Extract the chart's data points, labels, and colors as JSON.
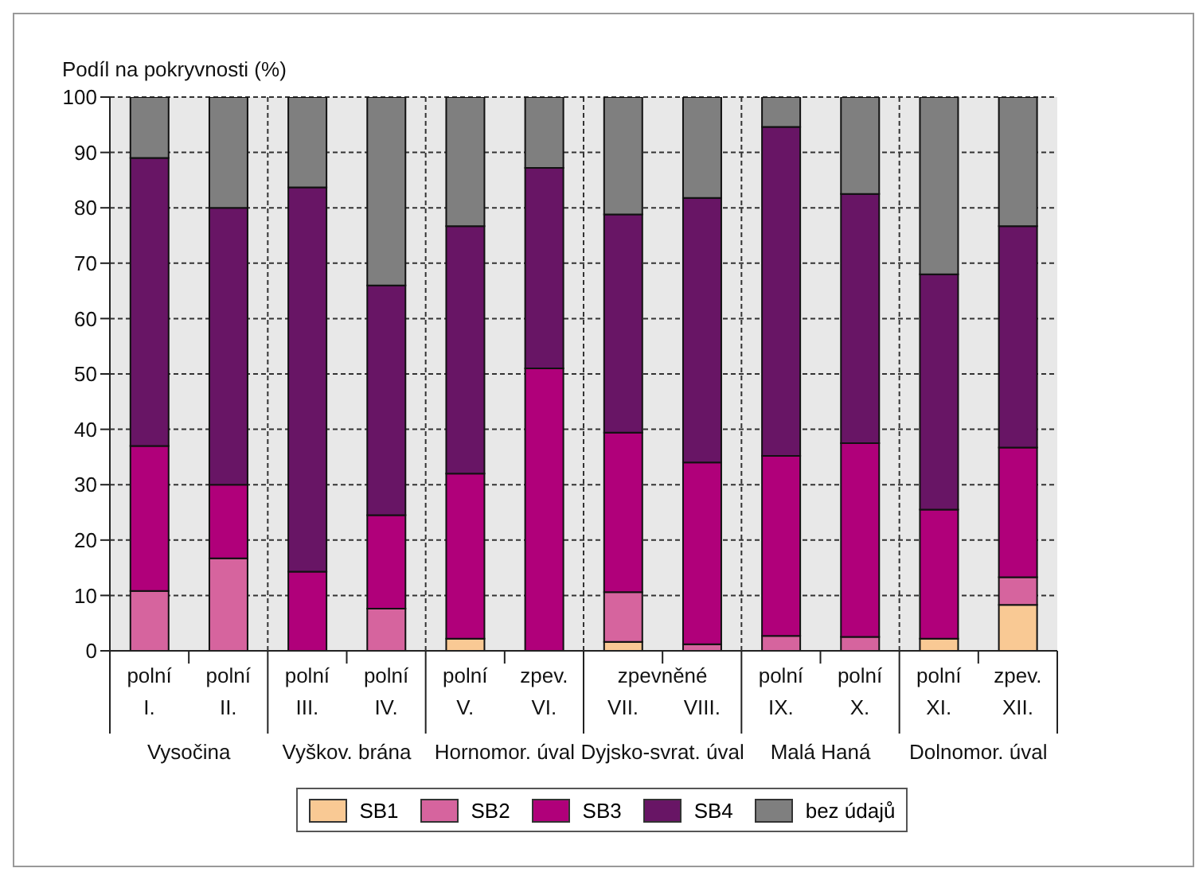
{
  "chart_data": {
    "type": "bar",
    "stacked": true,
    "ylabel": "Podíl na pokryvnosti (%)",
    "categories": [
      "polní\nI.",
      "polní\nII.",
      "polní\nIII.",
      "polní\nIV.",
      "polní\nV.",
      "zpev.\nVI.",
      "VII.",
      "VIII.",
      "polní\nIX.",
      "polní\nX.",
      "polní\nXI.",
      "zpev.\nXII."
    ],
    "series": [
      {
        "name": "SB1",
        "color": "#f9c994",
        "values": [
          0,
          0,
          0,
          0,
          2.2,
          0,
          1.6,
          0,
          0,
          0,
          2.2,
          8.3
        ]
      },
      {
        "name": "SB2",
        "color": "#d6649e",
        "values": [
          10.8,
          16.7,
          0,
          7.6,
          0,
          0,
          9,
          1.2,
          2.7,
          2.5,
          0,
          5
        ]
      },
      {
        "name": "SB3",
        "color": "#b0007a",
        "values": [
          26.2,
          13.3,
          14.3,
          16.9,
          29.8,
          51,
          28.8,
          32.8,
          32.5,
          35,
          23.3,
          23.4
        ]
      },
      {
        "name": "SB4",
        "color": "#681565",
        "values": [
          52,
          50,
          69.4,
          41.5,
          44.7,
          36.2,
          39.4,
          47.8,
          59.4,
          45,
          42.5,
          40
        ]
      },
      {
        "name": "bez údajů",
        "color": "#7f7f7f",
        "values": [
          11,
          20,
          16.3,
          34,
          23.3,
          12.8,
          21.2,
          18.2,
          5.4,
          17.5,
          32,
          23.3
        ]
      }
    ],
    "ylim": [
      0,
      100
    ],
    "yticks": [
      0,
      10,
      20,
      30,
      40,
      50,
      60,
      70,
      80,
      90,
      100
    ],
    "grid": "y",
    "legend": "bottom",
    "annotations": [
      "Vysočina",
      "Vyškov. brána",
      "Hornomor. úval",
      "Dyjsko-svrat. úval",
      "Malá Haná",
      "Dolnomor. úval",
      "zpevněné"
    ]
  }
}
